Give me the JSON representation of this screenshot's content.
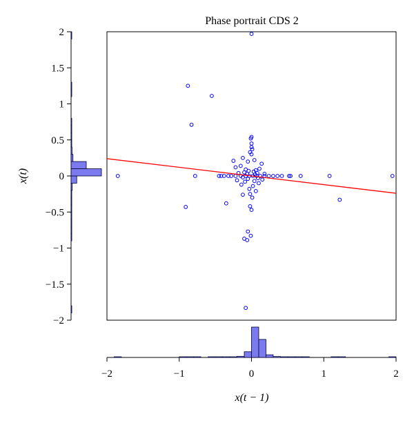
{
  "chart_data": {
    "type": "scatter",
    "title": "Phase portrait CDS 2",
    "xlabel": "x(t − 1)",
    "ylabel": "x(t)",
    "xlim": [
      -2,
      2
    ],
    "ylim": [
      -2,
      2
    ],
    "xticks": [
      "−2",
      "−1",
      "0",
      "1",
      "2"
    ],
    "yticks": [
      "2",
      "1.5",
      "1",
      "0.5",
      "0",
      "−0.5",
      "−1",
      "−1.5",
      "−2"
    ],
    "grid": false,
    "colors": {
      "points": "#0000ff",
      "fit_line": "#ff0000",
      "histogram_fill": "#7b7bef",
      "histogram_edge": "#000033"
    },
    "fit_line": {
      "slope": -0.12,
      "intercept": 0.0
    },
    "points": [
      [
        0.0,
        1.97
      ],
      [
        -0.88,
        1.25
      ],
      [
        -0.55,
        1.11
      ],
      [
        -0.83,
        0.71
      ],
      [
        0.0,
        0.54
      ],
      [
        -0.01,
        0.52
      ],
      [
        0.0,
        0.45
      ],
      [
        0.0,
        0.4
      ],
      [
        0.01,
        0.37
      ],
      [
        -0.02,
        0.33
      ],
      [
        0.0,
        0.3
      ],
      [
        -0.12,
        0.25
      ],
      [
        0.04,
        0.22
      ],
      [
        -0.05,
        0.2
      ],
      [
        -0.25,
        0.21
      ],
      [
        -0.15,
        0.14
      ],
      [
        0.14,
        0.17
      ],
      [
        -0.22,
        0.12
      ],
      [
        0.11,
        0.1
      ],
      [
        -0.08,
        0.09
      ],
      [
        0.06,
        0.08
      ],
      [
        -0.04,
        0.07
      ],
      [
        0.03,
        0.06
      ],
      [
        -0.1,
        0.05
      ],
      [
        0.08,
        0.04
      ],
      [
        -0.18,
        0.04
      ],
      [
        0.18,
        0.03
      ],
      [
        -0.06,
        0.03
      ],
      [
        0.05,
        0.02
      ],
      [
        -0.45,
        0.0
      ],
      [
        -0.42,
        0.0
      ],
      [
        -0.38,
        0.0
      ],
      [
        -0.32,
        0.0
      ],
      [
        -0.28,
        0.0
      ],
      [
        -0.22,
        0.0
      ],
      [
        -0.15,
        0.0
      ],
      [
        -0.08,
        0.0
      ],
      [
        -0.03,
        0.0
      ],
      [
        0.02,
        0.0
      ],
      [
        0.07,
        0.0
      ],
      [
        0.12,
        0.0
      ],
      [
        0.18,
        0.0
      ],
      [
        0.24,
        0.0
      ],
      [
        0.3,
        0.0
      ],
      [
        0.36,
        0.0
      ],
      [
        0.42,
        0.0
      ],
      [
        0.52,
        0.0
      ],
      [
        0.68,
        0.0
      ],
      [
        1.08,
        0.0
      ],
      [
        1.95,
        0.0
      ],
      [
        -1.85,
        0.0
      ],
      [
        -0.78,
        0.0
      ],
      [
        0.54,
        0.0
      ],
      [
        -0.12,
        -0.02
      ],
      [
        0.09,
        -0.03
      ],
      [
        -0.05,
        -0.04
      ],
      [
        0.15,
        -0.05
      ],
      [
        -0.2,
        -0.06
      ],
      [
        0.04,
        -0.07
      ],
      [
        -0.09,
        -0.08
      ],
      [
        0.1,
        -0.1
      ],
      [
        -0.14,
        -0.12
      ],
      [
        0.02,
        -0.14
      ],
      [
        -0.03,
        -0.18
      ],
      [
        0.06,
        -0.21
      ],
      [
        -0.02,
        -0.25
      ],
      [
        0.01,
        -0.3
      ],
      [
        -0.12,
        -0.26
      ],
      [
        -0.35,
        -0.38
      ],
      [
        -0.02,
        -0.42
      ],
      [
        0.0,
        -0.47
      ],
      [
        -0.91,
        -0.43
      ],
      [
        1.22,
        -0.33
      ],
      [
        -0.05,
        -0.77
      ],
      [
        -0.01,
        -0.83
      ],
      [
        -0.1,
        -0.87
      ],
      [
        -0.06,
        -0.89
      ],
      [
        -0.08,
        -1.83
      ]
    ],
    "x_histogram": {
      "bin_edges": [
        -2.0,
        -1.9,
        -1.8,
        -1.7,
        -1.6,
        -1.5,
        -1.4,
        -1.3,
        -1.2,
        -1.1,
        -1.0,
        -0.9,
        -0.8,
        -0.7,
        -0.6,
        -0.5,
        -0.4,
        -0.3,
        -0.2,
        -0.1,
        0.0,
        0.1,
        0.2,
        0.3,
        0.4,
        0.5,
        0.6,
        0.7,
        0.8,
        0.9,
        1.0,
        1.1,
        1.2,
        1.3,
        1.4,
        1.5,
        1.6,
        1.7,
        1.8,
        1.9,
        2.0
      ],
      "counts": [
        0,
        1,
        0,
        0,
        0,
        0,
        0,
        0,
        0,
        0,
        1,
        1,
        1,
        0,
        1,
        1,
        2,
        2,
        6,
        30,
        160,
        95,
        14,
        5,
        3,
        2,
        1,
        1,
        0,
        0,
        0,
        1,
        1,
        0,
        0,
        0,
        0,
        0,
        0,
        1
      ],
      "max_count": 160
    },
    "y_histogram": {
      "bin_edges": [
        -2.0,
        -1.9,
        -1.8,
        -1.7,
        -1.6,
        -1.5,
        -1.4,
        -1.3,
        -1.2,
        -1.1,
        -1.0,
        -0.9,
        -0.8,
        -0.7,
        -0.6,
        -0.5,
        -0.4,
        -0.3,
        -0.2,
        -0.1,
        0.0,
        0.1,
        0.2,
        0.3,
        0.4,
        0.5,
        0.6,
        0.7,
        0.8,
        0.9,
        1.0,
        1.1,
        1.2,
        1.3,
        1.4,
        1.5,
        1.6,
        1.7,
        1.8,
        1.9,
        2.0
      ],
      "counts": [
        0,
        1,
        0,
        0,
        0,
        0,
        0,
        0,
        0,
        0,
        0,
        1,
        2,
        1,
        1,
        2,
        1,
        2,
        6,
        30,
        160,
        80,
        10,
        5,
        2,
        1,
        1,
        1,
        0,
        0,
        0,
        1,
        1,
        0,
        0,
        0,
        0,
        0,
        0,
        1
      ],
      "max_count": 160
    }
  }
}
